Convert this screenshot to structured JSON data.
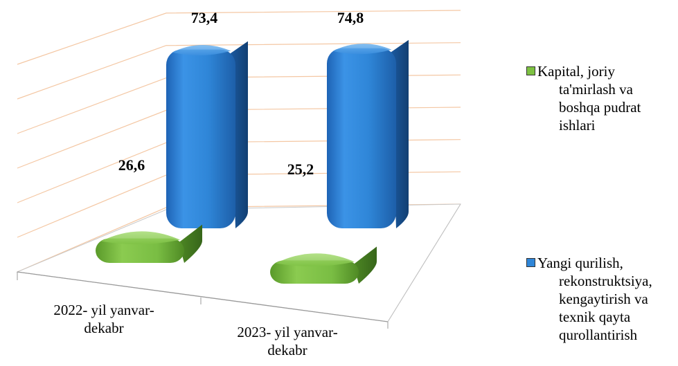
{
  "chart_data": {
    "type": "bar",
    "title": "",
    "categories": [
      "2022- yil yanvar-dekabr",
      "2023- yil yanvar-dekabr"
    ],
    "category_lines": [
      [
        "2022- yil yanvar-",
        "dekabr"
      ],
      [
        "2023- yil yanvar-",
        "dekabr"
      ]
    ],
    "series": [
      {
        "name": "Kapital, joriy ta'mirlash va boshqa pudrat ishlari",
        "values": [
          26.6,
          25.2
        ],
        "labels": [
          "26,6",
          "25,2"
        ],
        "color": "#7dc142"
      },
      {
        "name": "Yangi qurilish, rekonstruktsiya, kengaytirish va texnik qayta qurollantirish",
        "values": [
          73.4,
          74.8
        ],
        "labels": [
          "73,4",
          "74,8"
        ],
        "color": "#2f86d8"
      }
    ],
    "ylim": [
      0,
      80
    ],
    "grid": true,
    "legend": "right",
    "perspective": "3d"
  },
  "legend": {
    "items": [
      {
        "label": "Kapital, joriy ta'mirlash va boshqa pudrat ishlari",
        "color": "#7dc142"
      },
      {
        "label": "Yangi qurilish, rekonstruktsiya, kengaytirish va texnik qayta qurollantirish",
        "color": "#2f86d8"
      }
    ]
  }
}
